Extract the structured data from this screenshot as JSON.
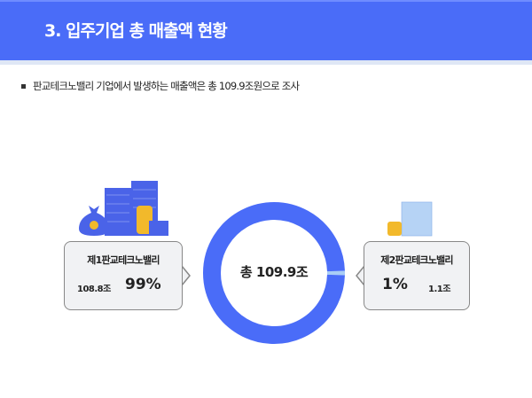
{
  "header": {
    "title": "3. 입주기업 총 매출액 현황"
  },
  "subtitle": "판교테크노밸리 기업에서 발생하는 매출액은 총 109.9조원으로 조사",
  "colors": {
    "header": "#4a6cf8",
    "main_series": "#4a6cf8",
    "minor_series": "#a9cdf5"
  },
  "chart_data": {
    "type": "pie",
    "center_label": "총 109.9조",
    "slices": [
      {
        "name": "제1판교테크노밸리",
        "value": 108.8,
        "value_label": "108.8조",
        "percent_label": "99%",
        "color": "#4a6cf8"
      },
      {
        "name": "제2판교테크노밸리",
        "value": 1.1,
        "value_label": "1.1조",
        "percent_label": "1%",
        "color": "#a9cdf5"
      }
    ]
  },
  "icons": {
    "left": "money-bag-buildings-coins-icon",
    "right": "money-stack-coins-icon"
  }
}
